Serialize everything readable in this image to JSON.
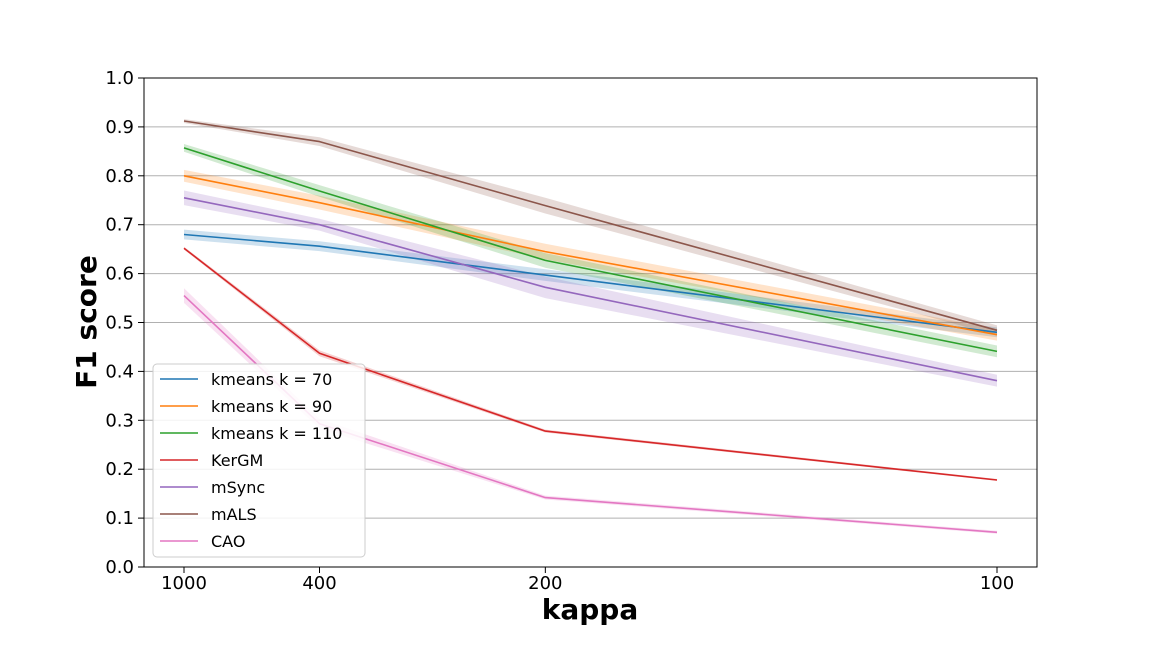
{
  "chart_data": {
    "type": "line",
    "title": "",
    "xlabel": "kappa",
    "ylabel": "F1 score",
    "x": [
      1000,
      400,
      200,
      100
    ],
    "x_tick_labels": [
      "1000",
      "400",
      "200",
      "100"
    ],
    "x_scale": "reciprocal",
    "ylim": [
      0.0,
      1.0
    ],
    "y_ticks": [
      0.0,
      0.1,
      0.2,
      0.3,
      0.4,
      0.5,
      0.6,
      0.7,
      0.8,
      0.9,
      1.0
    ],
    "y_tick_labels": [
      "0.0",
      "0.1",
      "0.2",
      "0.3",
      "0.4",
      "0.5",
      "0.6",
      "0.7",
      "0.8",
      "0.9",
      "1.0"
    ],
    "grid": "horizontal",
    "legend_position": "lower-left",
    "series": [
      {
        "name": "kmeans k = 70",
        "color": "#1f77b4",
        "values": [
          0.68,
          0.656,
          0.597,
          0.48
        ],
        "band": [
          0.01,
          0.01,
          0.012,
          0.01
        ]
      },
      {
        "name": "kmeans k = 90",
        "color": "#ff7f0e",
        "values": [
          0.8,
          0.745,
          0.645,
          0.475
        ],
        "band": [
          0.012,
          0.014,
          0.016,
          0.012
        ]
      },
      {
        "name": "kmeans k = 110",
        "color": "#2ca02c",
        "values": [
          0.857,
          0.769,
          0.627,
          0.441
        ],
        "band": [
          0.008,
          0.012,
          0.015,
          0.012
        ]
      },
      {
        "name": "KerGM",
        "color": "#d62728",
        "values": [
          0.652,
          0.437,
          0.278,
          0.178
        ],
        "band": [
          0.003,
          0.006,
          0.003,
          0.002
        ]
      },
      {
        "name": "mSync",
        "color": "#9467bd",
        "values": [
          0.755,
          0.7,
          0.572,
          0.381
        ],
        "band": [
          0.015,
          0.012,
          0.022,
          0.012
        ]
      },
      {
        "name": "mALS",
        "color": "#8c564b",
        "values": [
          0.912,
          0.87,
          0.739,
          0.484
        ],
        "band": [
          0.004,
          0.009,
          0.016,
          0.01
        ]
      },
      {
        "name": "CAO",
        "color": "#e377c2",
        "values": [
          0.555,
          0.293,
          0.142,
          0.071
        ],
        "band": [
          0.015,
          0.01,
          0.004,
          0.003
        ]
      }
    ]
  }
}
